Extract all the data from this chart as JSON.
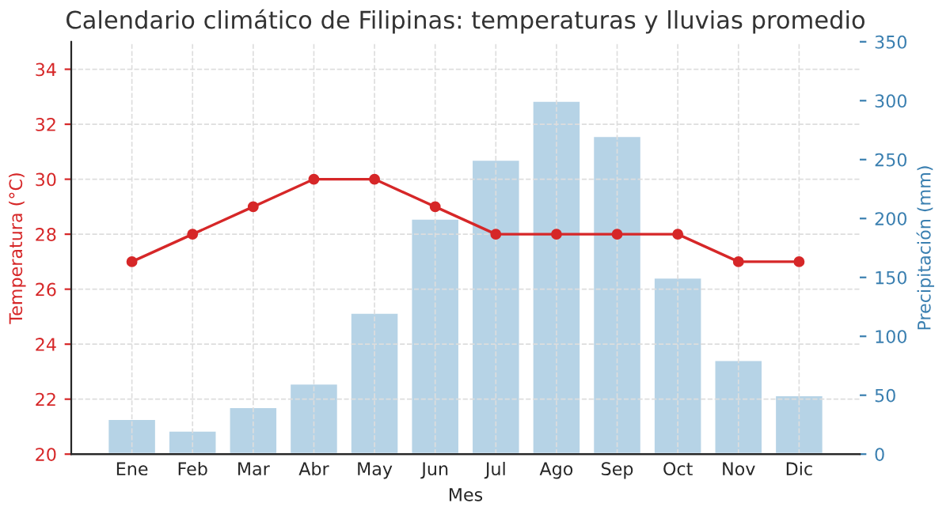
{
  "chart_data": {
    "type": "line",
    "title": "Calendario climático de Filipinas: temperaturas y lluvias promedio",
    "xlabel": "Mes",
    "ylabel": "Temperatura (°C)",
    "y2label": "Precipitación (mm)",
    "categories": [
      "Ene",
      "Feb",
      "Mar",
      "Abr",
      "May",
      "Jun",
      "Jul",
      "Ago",
      "Sep",
      "Oct",
      "Nov",
      "Dic"
    ],
    "series": [
      {
        "type": "bar",
        "axis": "y2",
        "color": "#b3d1e5",
        "values": [
          30,
          20,
          40,
          60,
          120,
          200,
          250,
          300,
          270,
          150,
          80,
          50
        ]
      },
      {
        "color": "#d62728",
        "values": [
          27,
          28,
          29,
          30,
          30,
          29,
          28,
          28,
          28,
          28,
          27,
          27
        ]
      }
    ],
    "ylim": [
      20,
      35
    ],
    "yticks": [
      20,
      22,
      24,
      26,
      28,
      30,
      32,
      34
    ],
    "y2lim": [
      0,
      350
    ],
    "y2ticks": [
      0,
      50,
      100,
      150,
      200,
      250,
      300,
      350
    ],
    "grid": true,
    "marker": "circle",
    "line_style": "solid",
    "legend": false
  }
}
